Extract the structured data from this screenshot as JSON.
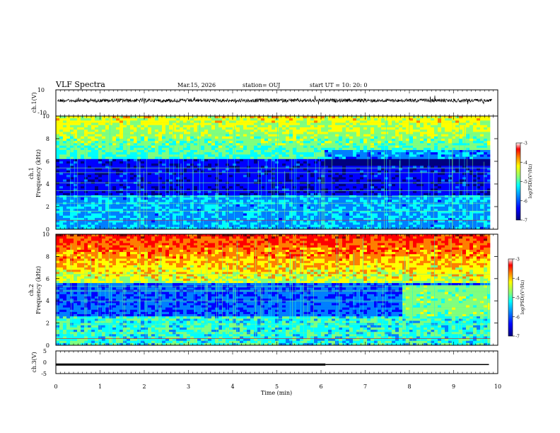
{
  "header": {
    "title": "VLF Spectra",
    "date": "Mar.15, 2026",
    "station": "station= OUJ",
    "start": "start  UT  =   10: 20: 0"
  },
  "chart_data": [
    {
      "type": "line",
      "ylabel": "ch.1(V)",
      "ylim": [
        -10,
        10
      ],
      "yticks": [
        "10",
        "-10"
      ],
      "xlim": [
        0,
        10
      ],
      "description_level": 1.0
    },
    {
      "type": "heatmap",
      "ylabel_line1": "ch.1",
      "ylabel_line2": "Frequency  (kHz)",
      "ylim": [
        0,
        10
      ],
      "yticks": [
        "0",
        "2",
        "4",
        "6",
        "8",
        "10"
      ],
      "xlim": [
        0,
        10
      ],
      "colorbar": {
        "label": "log(PSD)(V²/Hz)",
        "min": -7,
        "max": -3,
        "ticks": [
          "-3",
          "-4",
          "-5",
          "-6",
          "-7"
        ]
      }
    },
    {
      "type": "heatmap",
      "ylabel_line1": "ch.2",
      "ylabel_line2": "Frequency  (kHz)",
      "ylim": [
        0,
        10
      ],
      "yticks": [
        "0",
        "2",
        "4",
        "6",
        "8",
        "10"
      ],
      "xlim": [
        0,
        10
      ],
      "colorbar": {
        "label": "log(PSD)(V²/Hz)",
        "min": -7,
        "max": -3,
        "ticks": [
          "-3",
          "-4",
          "-5",
          "-6",
          "-7"
        ]
      }
    },
    {
      "type": "line",
      "ylabel": "ch.3(V)",
      "ylim": [
        -5,
        5
      ],
      "yticks": [
        "5",
        "0",
        "-5"
      ],
      "xlim": [
        0,
        10
      ],
      "segments": [
        {
          "x0": 0,
          "x1": 6.1,
          "y": -1.0
        },
        {
          "x0": 6.1,
          "x1": 9.8,
          "y": -1.0
        }
      ]
    }
  ],
  "xaxis": {
    "label": "Time  (min)",
    "ticks": [
      "0",
      "1",
      "2",
      "3",
      "4",
      "5",
      "6",
      "7",
      "8",
      "9",
      "10"
    ]
  },
  "colors": {
    "cmap": [
      "#00007f",
      "#0000ff",
      "#007fff",
      "#00ffff",
      "#7fff7f",
      "#ffff00",
      "#ff7f00",
      "#ff0000",
      "#7f0000"
    ]
  }
}
